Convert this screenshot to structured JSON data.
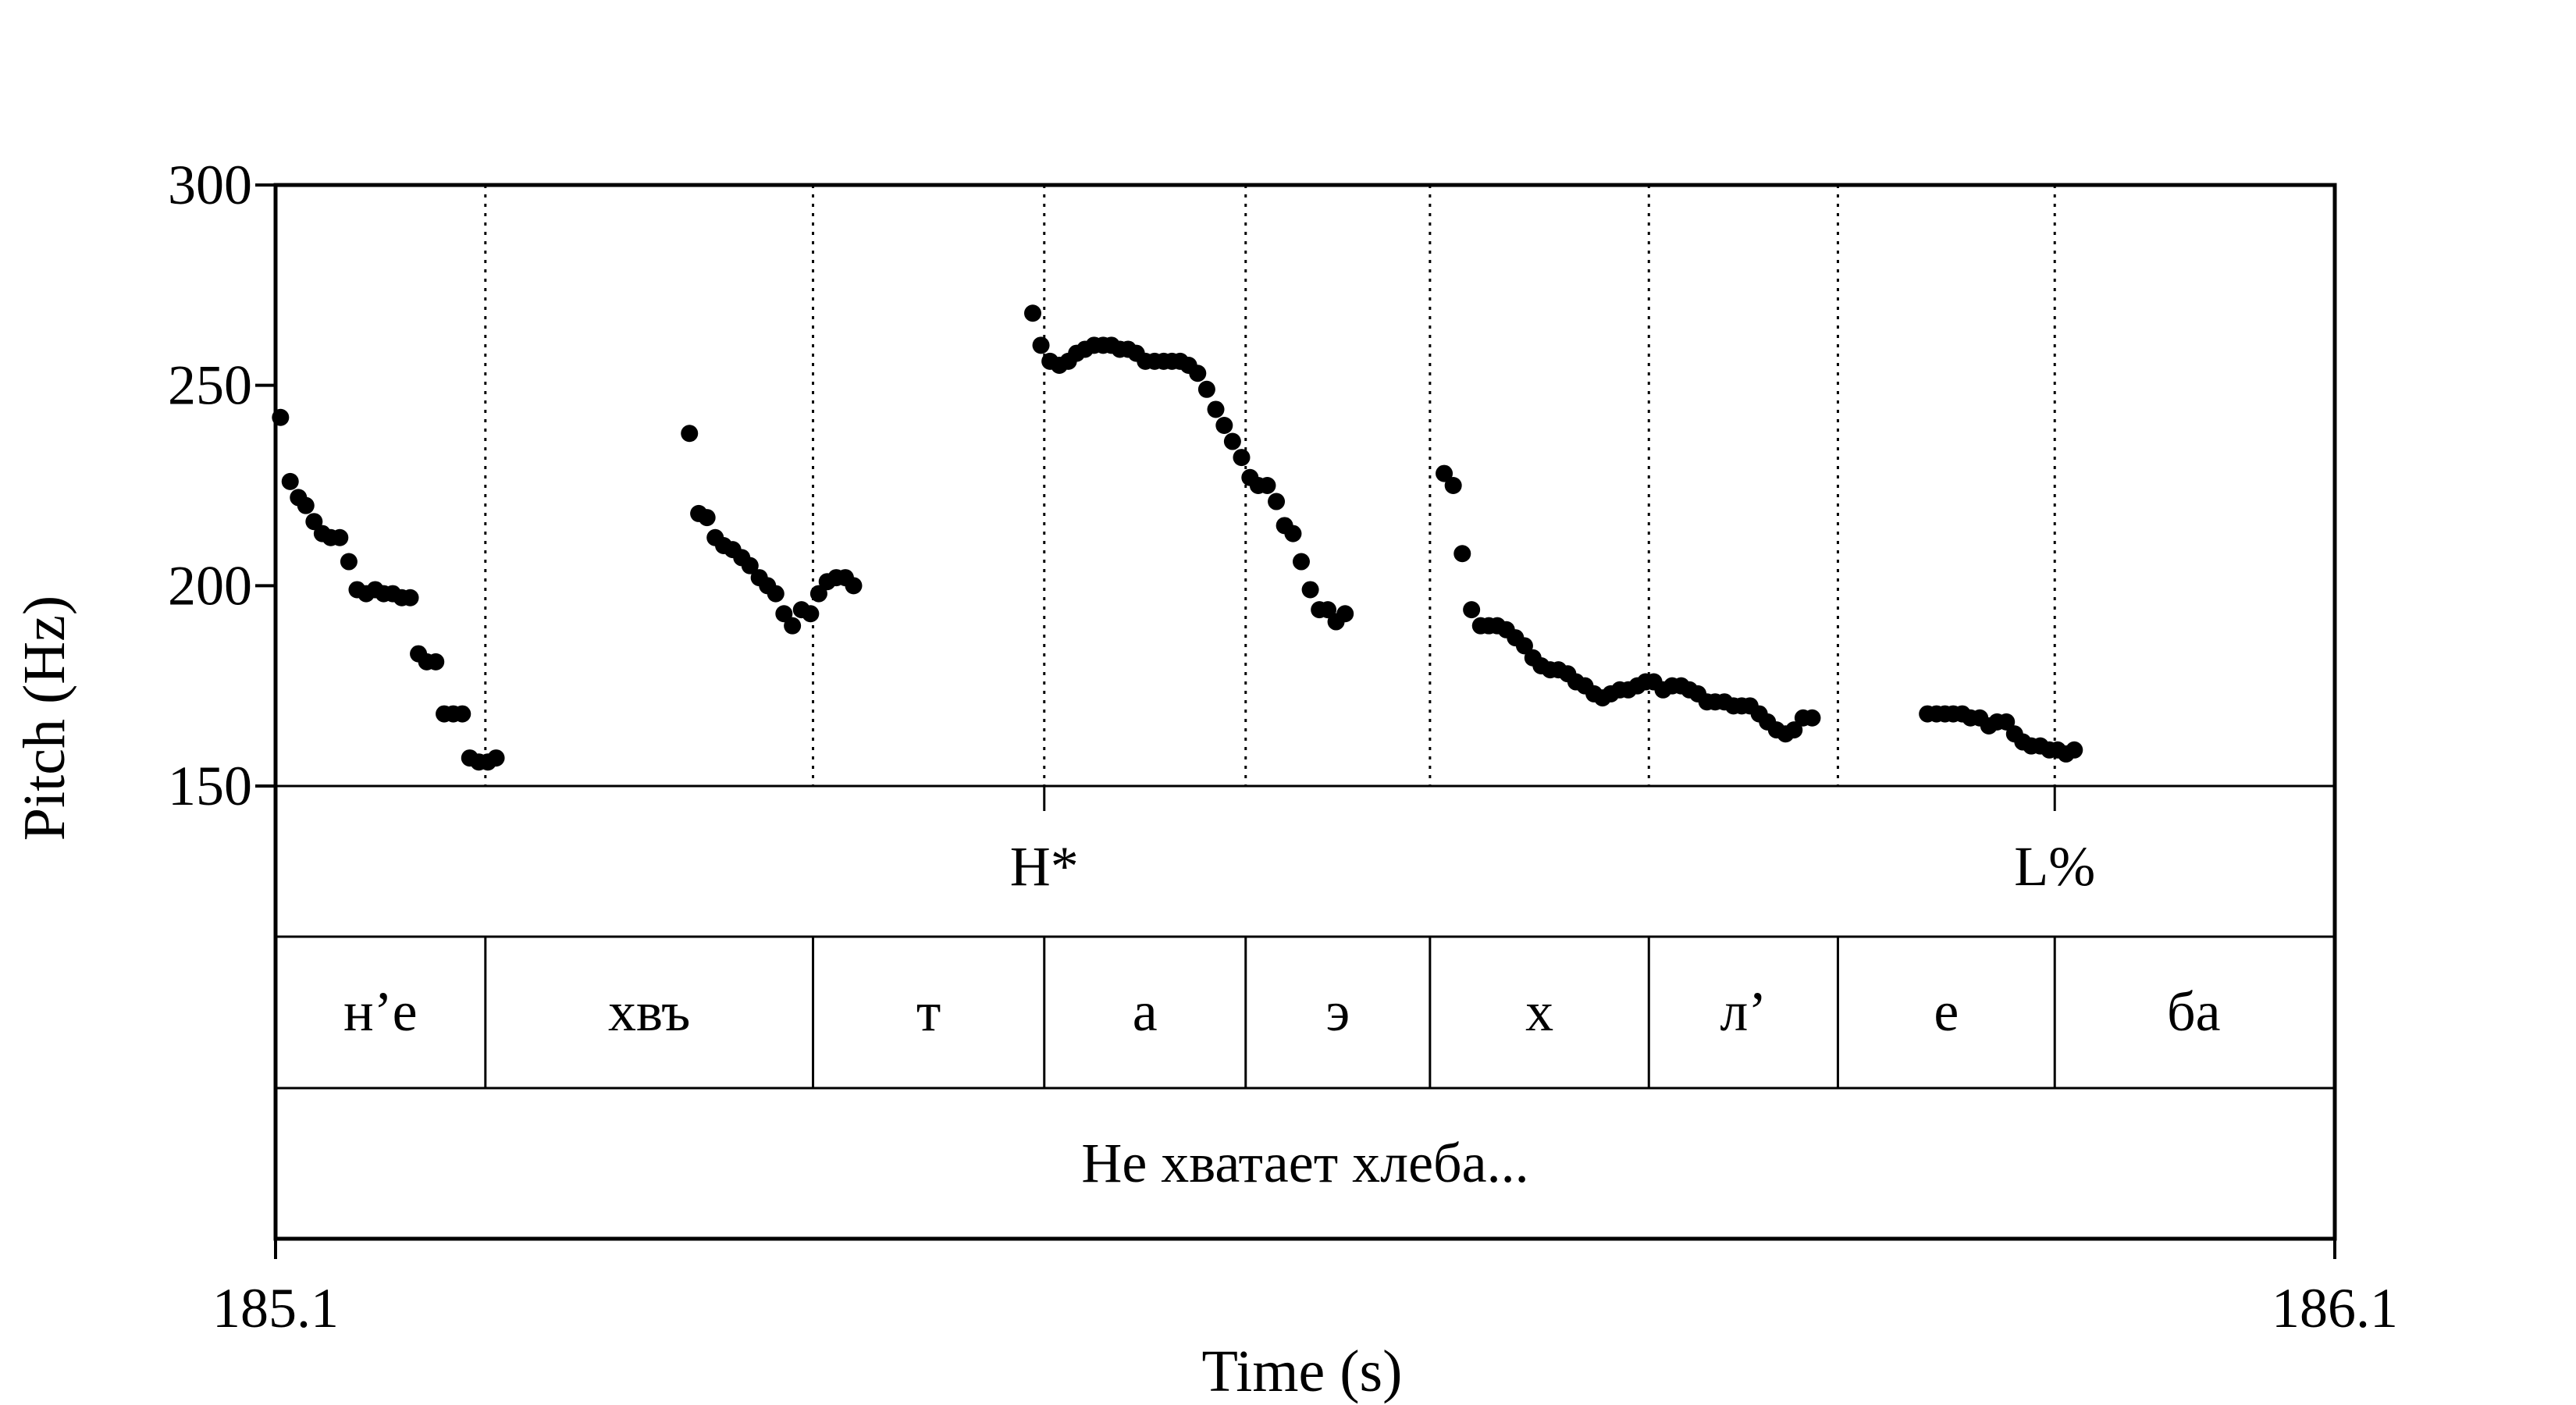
{
  "chart_data": {
    "type": "scatter",
    "xlabel": "Time (s)",
    "ylabel": "Pitch (Hz)",
    "xlim": [
      185.1,
      186.1
    ],
    "ylim": [
      150,
      300
    ],
    "x_ticks": [
      "185.1",
      "186.1"
    ],
    "y_ticks": [
      "150",
      "200",
      "250",
      "300"
    ],
    "grid": false,
    "pitch_points": [
      [
        185.1024,
        242
      ],
      [
        185.1071,
        226
      ],
      [
        185.1111,
        222
      ],
      [
        185.1147,
        220
      ],
      [
        185.1187,
        216
      ],
      [
        185.1227,
        213
      ],
      [
        185.1268,
        212
      ],
      [
        185.1312,
        212
      ],
      [
        185.1356,
        206
      ],
      [
        185.1396,
        199
      ],
      [
        185.144,
        198
      ],
      [
        185.1484,
        199
      ],
      [
        185.1525,
        198
      ],
      [
        185.1569,
        198
      ],
      [
        185.1613,
        197
      ],
      [
        185.1654,
        197
      ],
      [
        185.1694,
        183
      ],
      [
        185.1734,
        181
      ],
      [
        185.1778,
        181
      ],
      [
        185.1819,
        168
      ],
      [
        185.1863,
        168
      ],
      [
        185.1907,
        168
      ],
      [
        185.1943,
        157
      ],
      [
        185.1987,
        156
      ],
      [
        185.2031,
        156
      ],
      [
        185.2071,
        157
      ],
      [
        185.301,
        238
      ],
      [
        185.3055,
        218
      ],
      [
        185.3095,
        217
      ],
      [
        185.3135,
        212
      ],
      [
        185.3176,
        210
      ],
      [
        185.322,
        209
      ],
      [
        185.3264,
        207
      ],
      [
        185.3304,
        205
      ],
      [
        185.3349,
        202
      ],
      [
        185.3389,
        200
      ],
      [
        185.3429,
        198
      ],
      [
        185.3469,
        193
      ],
      [
        185.351,
        190
      ],
      [
        185.3554,
        194
      ],
      [
        185.3598,
        193
      ],
      [
        185.3638,
        198
      ],
      [
        185.3679,
        201
      ],
      [
        185.3723,
        202
      ],
      [
        185.3767,
        202
      ],
      [
        185.3807,
        200
      ],
      [
        185.4677,
        268
      ],
      [
        185.4717,
        260
      ],
      [
        185.4761,
        256
      ],
      [
        185.4806,
        255
      ],
      [
        185.485,
        256
      ],
      [
        185.489,
        258
      ],
      [
        185.4931,
        259
      ],
      [
        185.4975,
        260
      ],
      [
        185.5019,
        260
      ],
      [
        185.5059,
        260
      ],
      [
        185.51,
        259
      ],
      [
        185.514,
        259
      ],
      [
        185.518,
        258
      ],
      [
        185.5224,
        256
      ],
      [
        185.5269,
        256
      ],
      [
        185.5313,
        256
      ],
      [
        185.5353,
        256
      ],
      [
        185.5393,
        256
      ],
      [
        185.5434,
        255
      ],
      [
        185.5478,
        253
      ],
      [
        185.5522,
        249
      ],
      [
        185.5566,
        244
      ],
      [
        185.5607,
        240
      ],
      [
        185.5647,
        236
      ],
      [
        185.5691,
        232
      ],
      [
        185.5732,
        227
      ],
      [
        185.5772,
        225
      ],
      [
        185.5816,
        225
      ],
      [
        185.586,
        221
      ],
      [
        185.59,
        215
      ],
      [
        185.5941,
        213
      ],
      [
        185.5981,
        206
      ],
      [
        185.6025,
        199
      ],
      [
        185.6069,
        194
      ],
      [
        185.611,
        194
      ],
      [
        185.615,
        191
      ],
      [
        185.6194,
        193
      ],
      [
        185.6675,
        228
      ],
      [
        185.6719,
        225
      ],
      [
        185.6763,
        208
      ],
      [
        185.6808,
        194
      ],
      [
        185.6852,
        190
      ],
      [
        185.6892,
        190
      ],
      [
        185.6933,
        190
      ],
      [
        185.6977,
        189
      ],
      [
        185.7021,
        187
      ],
      [
        185.7065,
        185
      ],
      [
        185.7106,
        182
      ],
      [
        185.7146,
        180
      ],
      [
        185.719,
        179
      ],
      [
        185.723,
        179
      ],
      [
        185.7275,
        178
      ],
      [
        185.7315,
        176
      ],
      [
        185.7359,
        175
      ],
      [
        185.7403,
        173
      ],
      [
        185.7444,
        172
      ],
      [
        185.7484,
        173
      ],
      [
        185.7528,
        174
      ],
      [
        185.7569,
        174
      ],
      [
        185.7613,
        175
      ],
      [
        185.7653,
        176
      ],
      [
        185.7693,
        176
      ],
      [
        185.7738,
        174
      ],
      [
        185.7782,
        175
      ],
      [
        185.7826,
        175
      ],
      [
        185.7866,
        174
      ],
      [
        185.7907,
        173
      ],
      [
        185.7951,
        171
      ],
      [
        185.7991,
        171
      ],
      [
        185.8036,
        171
      ],
      [
        185.808,
        170
      ],
      [
        185.812,
        170
      ],
      [
        185.816,
        170
      ],
      [
        185.8205,
        168
      ],
      [
        185.8245,
        166
      ],
      [
        185.8289,
        164
      ],
      [
        185.8333,
        163
      ],
      [
        185.8374,
        164
      ],
      [
        185.8418,
        167
      ],
      [
        185.8462,
        167
      ],
      [
        185.9022,
        168
      ],
      [
        185.9066,
        168
      ],
      [
        185.9107,
        168
      ],
      [
        185.9147,
        168
      ],
      [
        185.9191,
        168
      ],
      [
        185.9231,
        167
      ],
      [
        185.9276,
        167
      ],
      [
        185.932,
        165
      ],
      [
        185.936,
        166
      ],
      [
        185.9405,
        166
      ],
      [
        185.9445,
        163
      ],
      [
        185.9485,
        161
      ],
      [
        185.9526,
        160
      ],
      [
        185.957,
        160
      ],
      [
        185.9614,
        159
      ],
      [
        185.9654,
        159
      ],
      [
        185.9695,
        158
      ],
      [
        185.9735,
        159
      ]
    ],
    "tones": [
      {
        "label": "H*",
        "time": 185.4733
      },
      {
        "label": "L%",
        "time": 185.964
      }
    ],
    "segments": [
      {
        "label": "н’е",
        "start": 185.1,
        "end": 185.2019
      },
      {
        "label": "хвъ",
        "start": 185.2019,
        "end": 185.361
      },
      {
        "label": "т",
        "start": 185.361,
        "end": 185.4733
      },
      {
        "label": "а",
        "start": 185.4733,
        "end": 185.5711
      },
      {
        "label": "э",
        "start": 185.5711,
        "end": 185.6606
      },
      {
        "label": "х",
        "start": 185.6606,
        "end": 185.7669
      },
      {
        "label": "л’",
        "start": 185.7669,
        "end": 185.8587
      },
      {
        "label": "е",
        "start": 185.8587,
        "end": 185.964
      },
      {
        "label": "ба",
        "start": 185.964,
        "end": 186.099
      }
    ],
    "phrase": "Не хватает хлеба..."
  }
}
